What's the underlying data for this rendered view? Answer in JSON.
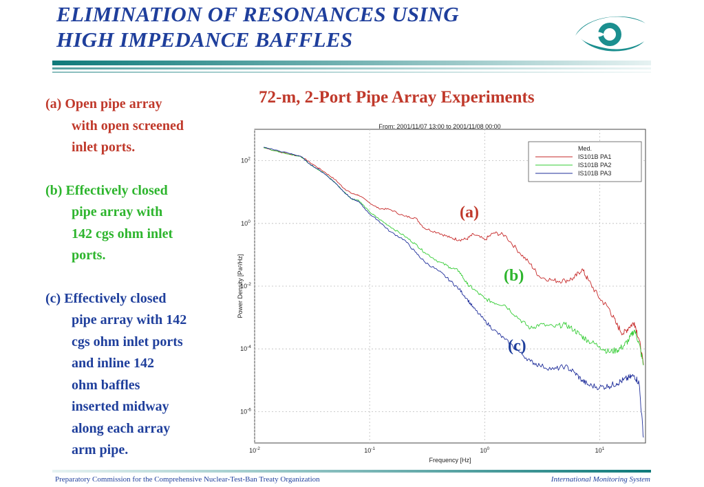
{
  "slide": {
    "title_line1": "ELIMINATION OF RESONANCES USING",
    "title_line2": "HIGH IMPEDANCE BAFFLES",
    "chart_heading": "72-m, 2-Port Pipe Array Experiments",
    "title_color": "#1f3f9c",
    "accent_color": "#1b8f8f"
  },
  "items": [
    {
      "marker": "(a)",
      "lines": [
        "Open pipe array",
        "with open screened",
        "inlet ports."
      ],
      "color": "#c0392b"
    },
    {
      "marker": "(b)",
      "lines": [
        "Effectively closed",
        "pipe array with",
        "142 cgs ohm inlet",
        "ports."
      ],
      "color": "#2db52d"
    },
    {
      "marker": "(c)",
      "lines": [
        "Effectively closed",
        "pipe array with 142",
        "cgs ohm inlet ports",
        "and inline 142",
        "ohm baffles",
        "inserted midway",
        "along each array",
        "arm pipe."
      ],
      "color": "#1f3f9c"
    }
  ],
  "curve_labels": {
    "a": "(a)",
    "b": "(b)",
    "c": "(c)"
  },
  "footer": {
    "left": "Preparatory Commission for the Comprehensive Nuclear-Test-Ban Treaty Organization",
    "right": "International Monitoring System"
  },
  "logo_icon": "ctbto-eye-logo-icon",
  "chart_data": {
    "type": "line",
    "title": "From: 2001/11/07 13:00  to  2001/11/08 00:00",
    "xlabel": "Frequency [Hz]",
    "ylabel": "Power Density [Pa²/Hz]",
    "xscale": "log",
    "yscale": "log",
    "xlim": [
      0.01,
      25
    ],
    "ylim": [
      1e-07,
      1000.0
    ],
    "grid": true,
    "legend_position": "top-right",
    "x_ticks": [
      {
        "v": 0.01,
        "b": "10",
        "e": "-2"
      },
      {
        "v": 0.1,
        "b": "10",
        "e": "-1"
      },
      {
        "v": 1,
        "b": "10",
        "e": "0"
      },
      {
        "v": 10,
        "b": "10",
        "e": "1"
      }
    ],
    "y_ticks": [
      {
        "v": 1e-06,
        "b": "10",
        "e": "-6"
      },
      {
        "v": 0.0001,
        "b": "10",
        "e": "-4"
      },
      {
        "v": 0.01,
        "b": "10",
        "e": "-2"
      },
      {
        "v": 1,
        "b": "10",
        "e": "0"
      },
      {
        "v": 100,
        "b": "10",
        "e": "2"
      }
    ],
    "legend_entries": [
      "Med.",
      "IS101B PA1",
      "IS101B PA2",
      "IS101B PA3"
    ],
    "legend_colors": [
      "#ffffff",
      "#c62828",
      "#33cc33",
      "#1e2d9a"
    ],
    "series": [
      {
        "name": "IS101B PA1",
        "color": "#c62828",
        "x": [
          0.012,
          0.02,
          0.025,
          0.03,
          0.04,
          0.05,
          0.06,
          0.07,
          0.08,
          0.1,
          0.12,
          0.15,
          0.2,
          0.25,
          0.3,
          0.4,
          0.5,
          0.6,
          0.7,
          0.8,
          1.0,
          1.2,
          1.5,
          2.0,
          2.5,
          3.0,
          4.0,
          5.0,
          6.0,
          7.0,
          8.0,
          10.0,
          12.0,
          14.0,
          16.0,
          18.0,
          20.0,
          22.0,
          24.0
        ],
        "y": [
          260,
          160,
          140,
          90,
          45,
          25,
          13,
          9,
          8,
          4.5,
          3.0,
          2.8,
          1.7,
          1.5,
          0.7,
          0.5,
          0.35,
          0.3,
          0.32,
          0.45,
          0.3,
          0.5,
          0.42,
          0.12,
          0.05,
          0.02,
          0.015,
          0.015,
          0.018,
          0.035,
          0.015,
          0.004,
          0.002,
          0.0006,
          0.0003,
          0.0005,
          0.0007,
          0.0002,
          3e-05
        ]
      },
      {
        "name": "IS101B PA2",
        "color": "#33cc33",
        "x": [
          0.012,
          0.02,
          0.025,
          0.03,
          0.04,
          0.05,
          0.06,
          0.07,
          0.08,
          0.1,
          0.12,
          0.15,
          0.2,
          0.25,
          0.3,
          0.4,
          0.5,
          0.6,
          0.7,
          0.8,
          1.0,
          1.2,
          1.5,
          2.0,
          2.5,
          3.0,
          4.0,
          5.0,
          6.0,
          7.0,
          8.0,
          10.0,
          12.0,
          14.0,
          16.0,
          18.0,
          20.0,
          22.0,
          24.0
        ],
        "y": [
          260,
          160,
          140,
          80,
          40,
          20,
          10,
          6,
          5.5,
          2.3,
          1.4,
          0.8,
          0.4,
          0.22,
          0.12,
          0.06,
          0.04,
          0.03,
          0.012,
          0.008,
          0.004,
          0.003,
          0.0025,
          0.0009,
          0.00045,
          0.0006,
          0.0005,
          0.0006,
          0.0004,
          0.00025,
          0.00018,
          0.00012,
          8e-05,
          9e-05,
          0.00012,
          0.0002,
          0.0004,
          0.00015,
          3e-05
        ]
      },
      {
        "name": "IS101B PA3",
        "color": "#1e2d9a",
        "x": [
          0.012,
          0.02,
          0.025,
          0.03,
          0.04,
          0.05,
          0.06,
          0.07,
          0.08,
          0.1,
          0.12,
          0.15,
          0.2,
          0.25,
          0.3,
          0.4,
          0.5,
          0.6,
          0.7,
          0.8,
          1.0,
          1.2,
          1.5,
          2.0,
          2.5,
          3.0,
          4.0,
          5.0,
          6.0,
          7.0,
          8.0,
          10.0,
          12.0,
          14.0,
          16.0,
          18.0,
          20.0,
          22.0,
          24.0
        ],
        "y": [
          270,
          170,
          140,
          80,
          40,
          20,
          10,
          6,
          5.0,
          2.0,
          1.2,
          0.55,
          0.3,
          0.12,
          0.06,
          0.03,
          0.015,
          0.008,
          0.004,
          0.002,
          0.0008,
          0.0004,
          0.0002,
          8e-05,
          4e-05,
          3e-05,
          2.2e-05,
          2.8e-05,
          1.8e-05,
          1e-05,
          7e-06,
          6e-06,
          6.5e-06,
          8e-06,
          1e-05,
          1.2e-05,
          1.4e-05,
          8e-06,
          1.5e-07
        ]
      }
    ]
  }
}
